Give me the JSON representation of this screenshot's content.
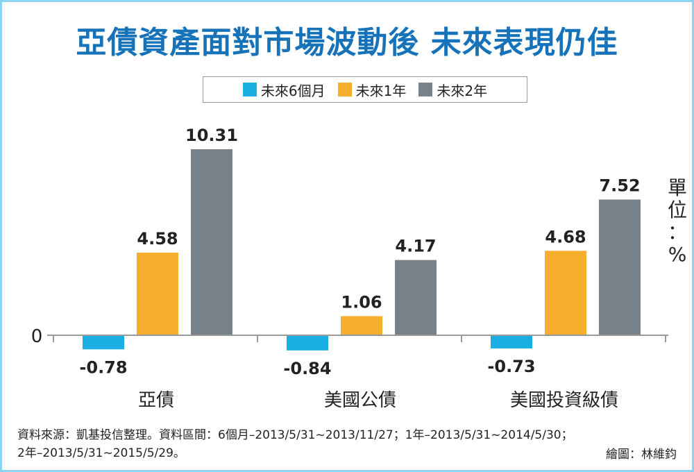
{
  "title": "亞債資產面對市場波動後  未來表現仍佳",
  "unit_label": "單位：%",
  "footer": {
    "source": "資料來源：凱基投信整理。資料區間：6個月–2013/5/31~2013/11/27；1年–2013/5/31~2014/5/30；",
    "source_line2": "2年–2013/5/31~2015/5/29。",
    "credit": "繪圖：林維鈞"
  },
  "chart_data": {
    "type": "bar",
    "title": "亞債資產面對市場波動後  未來表現仍佳",
    "categories": [
      "亞債",
      "美國公債",
      "美國投資級債"
    ],
    "series": [
      {
        "name": "未來6個月",
        "color": "#1aaee3",
        "values": [
          -0.78,
          -0.84,
          -0.73
        ]
      },
      {
        "name": "未來1年",
        "color": "#f6ae2d",
        "values": [
          4.58,
          1.06,
          4.68
        ]
      },
      {
        "name": "未來2年",
        "color": "#78828a",
        "values": [
          10.31,
          4.17,
          7.52
        ]
      }
    ],
    "y_tick_labels": [
      "0"
    ],
    "ylabel": "單位：%",
    "legend_position": "top-center",
    "grid": false
  }
}
